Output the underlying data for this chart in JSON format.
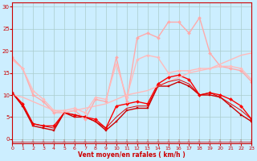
{
  "background_color": "#cceeff",
  "grid_color": "#aacccc",
  "xlabel": "Vent moyen/en rafales ( km/h )",
  "xlim": [
    0,
    23
  ],
  "ylim": [
    -1,
    31
  ],
  "xticks": [
    0,
    1,
    2,
    3,
    4,
    5,
    6,
    7,
    8,
    9,
    10,
    11,
    12,
    13,
    14,
    15,
    16,
    17,
    18,
    19,
    20,
    21,
    22,
    23
  ],
  "yticks": [
    0,
    5,
    10,
    15,
    20,
    25,
    30
  ],
  "lines": [
    {
      "x": [
        0,
        1,
        2,
        3,
        4,
        5,
        6,
        7,
        8,
        9,
        10,
        11,
        12,
        13,
        14,
        15,
        16,
        17,
        18,
        19,
        20,
        21,
        22,
        23
      ],
      "y": [
        10.5,
        7.5,
        3,
        2.5,
        2,
        6,
        5,
        5,
        4,
        2,
        4,
        6.5,
        7,
        7,
        12,
        12,
        13,
        12,
        10,
        10,
        9.5,
        7.5,
        5.5,
        4
      ],
      "color": "#cc0000",
      "linewidth": 1.0,
      "marker": "s",
      "markersize": 2.0
    },
    {
      "x": [
        0,
        1,
        2,
        3,
        4,
        5,
        6,
        7,
        8,
        9,
        10,
        11,
        12,
        13,
        14,
        15,
        16,
        17,
        18,
        19,
        20,
        21,
        22,
        23
      ],
      "y": [
        10.5,
        8,
        3.5,
        3,
        3,
        6,
        5.5,
        5,
        4.5,
        2.5,
        7.5,
        8,
        8.5,
        8,
        12.5,
        14,
        14.5,
        13.5,
        10,
        10.5,
        10,
        9,
        7.5,
        4.5
      ],
      "color": "#ff0000",
      "linewidth": 1.0,
      "marker": "D",
      "markersize": 2.0
    },
    {
      "x": [
        0,
        1,
        2,
        3,
        4,
        5,
        6,
        7,
        8,
        9,
        10,
        11,
        12,
        13,
        14,
        15,
        16,
        17,
        18,
        19,
        20,
        21,
        22,
        23
      ],
      "y": [
        18.5,
        16,
        10,
        8.5,
        6,
        6,
        6.5,
        4.5,
        9,
        8.5,
        18.5,
        8.5,
        23,
        24,
        23,
        26.5,
        26.5,
        24,
        27.5,
        19.5,
        16.5,
        16,
        15.5,
        13
      ],
      "color": "#ffaaaa",
      "linewidth": 1.0,
      "marker": "D",
      "markersize": 2.0
    },
    {
      "x": [
        0,
        1,
        2,
        3,
        4,
        5,
        6,
        7,
        8,
        9,
        10,
        11,
        12,
        13,
        14,
        15,
        16,
        17,
        18,
        19,
        20,
        21,
        22,
        23
      ],
      "y": [
        10,
        9.5,
        8.5,
        7.5,
        6.5,
        6,
        6.5,
        7,
        7.5,
        8,
        9,
        10,
        10.5,
        11,
        12,
        13,
        14,
        15,
        15.5,
        16,
        17,
        18,
        19,
        19.5
      ],
      "color": "#ffbbbb",
      "linewidth": 1.0,
      "marker": null,
      "markersize": 0
    },
    {
      "x": [
        0,
        1,
        2,
        3,
        4,
        5,
        6,
        7,
        8,
        9,
        10,
        11,
        12,
        13,
        14,
        15,
        16,
        17,
        18,
        19,
        20,
        21,
        22,
        23
      ],
      "y": [
        18,
        16,
        11,
        9,
        6.5,
        6.5,
        7,
        6,
        9.5,
        9,
        17,
        9.5,
        18,
        19,
        18.5,
        15,
        15.5,
        15.5,
        16,
        16,
        16.5,
        16.5,
        16,
        13.5
      ],
      "color": "#ffbbbb",
      "linewidth": 1.0,
      "marker": "D",
      "markersize": 1.8
    },
    {
      "x": [
        0,
        1,
        2,
        3,
        4,
        5,
        6,
        7,
        8,
        9,
        10,
        11,
        12,
        13,
        14,
        15,
        16,
        17,
        18,
        19,
        20,
        21,
        22,
        23
      ],
      "y": [
        10.5,
        7.5,
        3.5,
        3,
        2.5,
        6,
        5.5,
        5,
        4,
        2.5,
        5,
        7,
        7.5,
        7.5,
        12,
        13,
        13.5,
        12.5,
        10,
        10.5,
        9.5,
        8,
        6.5,
        4.5
      ],
      "color": "#dd0000",
      "linewidth": 0.7,
      "marker": null,
      "markersize": 0
    },
    {
      "x": [
        0,
        1,
        2,
        3,
        4,
        5,
        6,
        7,
        8,
        9,
        10,
        11,
        12,
        13,
        14,
        15,
        16,
        17,
        18,
        19,
        20,
        21,
        22,
        23
      ],
      "y": [
        -0.5,
        -0.5,
        -0.5,
        -0.5,
        -0.5,
        -0.5,
        -0.5,
        -0.5,
        -0.5,
        -0.5,
        -0.5,
        -0.5,
        -0.5,
        -0.5,
        -0.5,
        -0.5,
        -0.5,
        -0.5,
        -0.5,
        -0.5,
        -0.5,
        -0.5,
        -0.5,
        -0.5
      ],
      "color": "#cc0000",
      "linewidth": 0.5,
      "marker": "2",
      "markersize": 4
    }
  ]
}
